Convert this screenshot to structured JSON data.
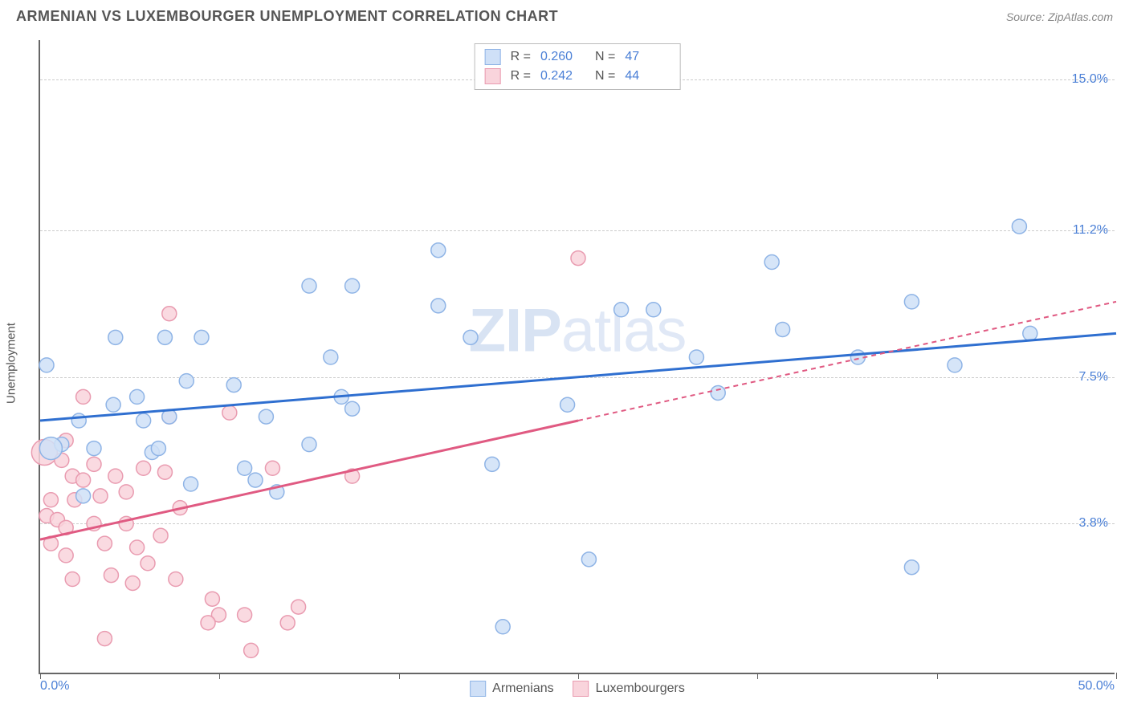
{
  "header": {
    "title": "ARMENIAN VS LUXEMBOURGER UNEMPLOYMENT CORRELATION CHART",
    "source": "Source: ZipAtlas.com"
  },
  "ylabel": "Unemployment",
  "watermark_bold": "ZIP",
  "watermark_thin": "atlas",
  "chart": {
    "type": "scatter",
    "xlim": [
      0,
      50
    ],
    "ylim": [
      0,
      16
    ],
    "x_min_label": "0.0%",
    "x_max_label": "50.0%",
    "x_tick_positions": [
      0,
      8.33,
      16.67,
      25,
      33.33,
      41.67,
      50
    ],
    "y_ticks": [
      {
        "v": 3.8,
        "label": "3.8%"
      },
      {
        "v": 7.5,
        "label": "7.5%"
      },
      {
        "v": 11.2,
        "label": "11.2%"
      },
      {
        "v": 15.0,
        "label": "15.0%"
      }
    ],
    "grid_color": "#cccccc",
    "background_color": "#ffffff",
    "series": [
      {
        "name": "Armenians",
        "color_fill": "#cfe0f7",
        "color_stroke": "#8fb4e6",
        "line_color": "#2f6fd0",
        "r_label": "R =",
        "r_value": "0.260",
        "n_label": "N =",
        "n_value": "47",
        "trend": {
          "x1": 0,
          "y1": 6.4,
          "x2": 50,
          "y2": 8.6,
          "solid_until": 50
        },
        "points": [
          {
            "x": 0.3,
            "y": 7.8,
            "r": 9
          },
          {
            "x": 21.5,
            "y": 1.2,
            "r": 9
          },
          {
            "x": 25.5,
            "y": 2.9,
            "r": 9
          },
          {
            "x": 40.5,
            "y": 2.7,
            "r": 9
          },
          {
            "x": 1.0,
            "y": 5.8,
            "r": 9
          },
          {
            "x": 2.5,
            "y": 5.7,
            "r": 9
          },
          {
            "x": 5.2,
            "y": 5.6,
            "r": 9
          },
          {
            "x": 4.8,
            "y": 6.4,
            "r": 9
          },
          {
            "x": 1.8,
            "y": 6.4,
            "r": 9
          },
          {
            "x": 3.4,
            "y": 6.8,
            "r": 9
          },
          {
            "x": 4.5,
            "y": 7.0,
            "r": 9
          },
          {
            "x": 6.0,
            "y": 6.5,
            "r": 9
          },
          {
            "x": 10.5,
            "y": 6.5,
            "r": 9
          },
          {
            "x": 14.5,
            "y": 6.7,
            "r": 9
          },
          {
            "x": 9.5,
            "y": 5.2,
            "r": 9
          },
          {
            "x": 10.0,
            "y": 4.9,
            "r": 9
          },
          {
            "x": 12.5,
            "y": 5.8,
            "r": 9
          },
          {
            "x": 21.0,
            "y": 5.3,
            "r": 9
          },
          {
            "x": 24.5,
            "y": 6.8,
            "r": 9
          },
          {
            "x": 3.5,
            "y": 8.5,
            "r": 9
          },
          {
            "x": 5.8,
            "y": 8.5,
            "r": 9
          },
          {
            "x": 7.5,
            "y": 8.5,
            "r": 9
          },
          {
            "x": 30.5,
            "y": 8.0,
            "r": 9
          },
          {
            "x": 38.0,
            "y": 8.0,
            "r": 9
          },
          {
            "x": 34.5,
            "y": 8.7,
            "r": 9
          },
          {
            "x": 42.5,
            "y": 7.8,
            "r": 9
          },
          {
            "x": 46.0,
            "y": 8.6,
            "r": 9
          },
          {
            "x": 28.5,
            "y": 9.2,
            "r": 9
          },
          {
            "x": 20.0,
            "y": 8.5,
            "r": 9
          },
          {
            "x": 18.5,
            "y": 9.3,
            "r": 9
          },
          {
            "x": 18.5,
            "y": 10.7,
            "r": 9
          },
          {
            "x": 12.5,
            "y": 9.8,
            "r": 9
          },
          {
            "x": 14.5,
            "y": 9.8,
            "r": 9
          },
          {
            "x": 27.0,
            "y": 9.2,
            "r": 9
          },
          {
            "x": 34.0,
            "y": 10.4,
            "r": 9
          },
          {
            "x": 40.5,
            "y": 9.4,
            "r": 9
          },
          {
            "x": 45.5,
            "y": 11.3,
            "r": 9
          },
          {
            "x": 6.8,
            "y": 7.4,
            "r": 9
          },
          {
            "x": 9.0,
            "y": 7.3,
            "r": 9
          },
          {
            "x": 14.0,
            "y": 7.0,
            "r": 9
          },
          {
            "x": 0.5,
            "y": 5.7,
            "r": 14
          },
          {
            "x": 2.0,
            "y": 4.5,
            "r": 9
          },
          {
            "x": 5.5,
            "y": 5.7,
            "r": 9
          },
          {
            "x": 7.0,
            "y": 4.8,
            "r": 9
          },
          {
            "x": 11.0,
            "y": 4.6,
            "r": 9
          },
          {
            "x": 13.5,
            "y": 8.0,
            "r": 9
          },
          {
            "x": 31.5,
            "y": 7.1,
            "r": 9
          }
        ]
      },
      {
        "name": "Luxembourgers",
        "color_fill": "#f9d4dc",
        "color_stroke": "#e99bb0",
        "line_color": "#e05a82",
        "r_label": "R =",
        "r_value": "0.242",
        "n_label": "N =",
        "n_value": "44",
        "trend": {
          "x1": 0,
          "y1": 3.4,
          "x2": 50,
          "y2": 9.4,
          "solid_until": 25
        },
        "points": [
          {
            "x": 25.0,
            "y": 10.5,
            "r": 9
          },
          {
            "x": 6.0,
            "y": 9.1,
            "r": 9
          },
          {
            "x": 2.0,
            "y": 7.0,
            "r": 9
          },
          {
            "x": 8.8,
            "y": 6.6,
            "r": 9
          },
          {
            "x": 6.0,
            "y": 6.5,
            "r": 9
          },
          {
            "x": 0.2,
            "y": 5.6,
            "r": 16
          },
          {
            "x": 1.2,
            "y": 5.9,
            "r": 9
          },
          {
            "x": 1.0,
            "y": 5.4,
            "r": 9
          },
          {
            "x": 1.5,
            "y": 5.0,
            "r": 9
          },
          {
            "x": 2.5,
            "y": 5.3,
            "r": 9
          },
          {
            "x": 3.5,
            "y": 5.0,
            "r": 9
          },
          {
            "x": 4.8,
            "y": 5.2,
            "r": 9
          },
          {
            "x": 5.8,
            "y": 5.1,
            "r": 9
          },
          {
            "x": 10.8,
            "y": 5.2,
            "r": 9
          },
          {
            "x": 14.5,
            "y": 5.0,
            "r": 9
          },
          {
            "x": 0.5,
            "y": 4.4,
            "r": 9
          },
          {
            "x": 1.6,
            "y": 4.4,
            "r": 9
          },
          {
            "x": 2.8,
            "y": 4.5,
            "r": 9
          },
          {
            "x": 0.3,
            "y": 4.0,
            "r": 9
          },
          {
            "x": 0.8,
            "y": 3.9,
            "r": 9
          },
          {
            "x": 1.2,
            "y": 3.7,
            "r": 9
          },
          {
            "x": 2.5,
            "y": 3.8,
            "r": 9
          },
          {
            "x": 4.0,
            "y": 3.8,
            "r": 9
          },
          {
            "x": 0.5,
            "y": 3.3,
            "r": 9
          },
          {
            "x": 1.2,
            "y": 3.0,
            "r": 9
          },
          {
            "x": 3.0,
            "y": 3.3,
            "r": 9
          },
          {
            "x": 4.5,
            "y": 3.2,
            "r": 9
          },
          {
            "x": 5.6,
            "y": 3.5,
            "r": 9
          },
          {
            "x": 5.0,
            "y": 2.8,
            "r": 9
          },
          {
            "x": 1.5,
            "y": 2.4,
            "r": 9
          },
          {
            "x": 3.3,
            "y": 2.5,
            "r": 9
          },
          {
            "x": 4.3,
            "y": 2.3,
            "r": 9
          },
          {
            "x": 6.3,
            "y": 2.4,
            "r": 9
          },
          {
            "x": 8.0,
            "y": 1.9,
            "r": 9
          },
          {
            "x": 8.3,
            "y": 1.5,
            "r": 9
          },
          {
            "x": 7.8,
            "y": 1.3,
            "r": 9
          },
          {
            "x": 9.5,
            "y": 1.5,
            "r": 9
          },
          {
            "x": 11.5,
            "y": 1.3,
            "r": 9
          },
          {
            "x": 12.0,
            "y": 1.7,
            "r": 9
          },
          {
            "x": 3.0,
            "y": 0.9,
            "r": 9
          },
          {
            "x": 9.8,
            "y": 0.6,
            "r": 9
          },
          {
            "x": 2.0,
            "y": 4.9,
            "r": 9
          },
          {
            "x": 4.0,
            "y": 4.6,
            "r": 9
          },
          {
            "x": 6.5,
            "y": 4.2,
            "r": 9
          }
        ]
      }
    ]
  }
}
